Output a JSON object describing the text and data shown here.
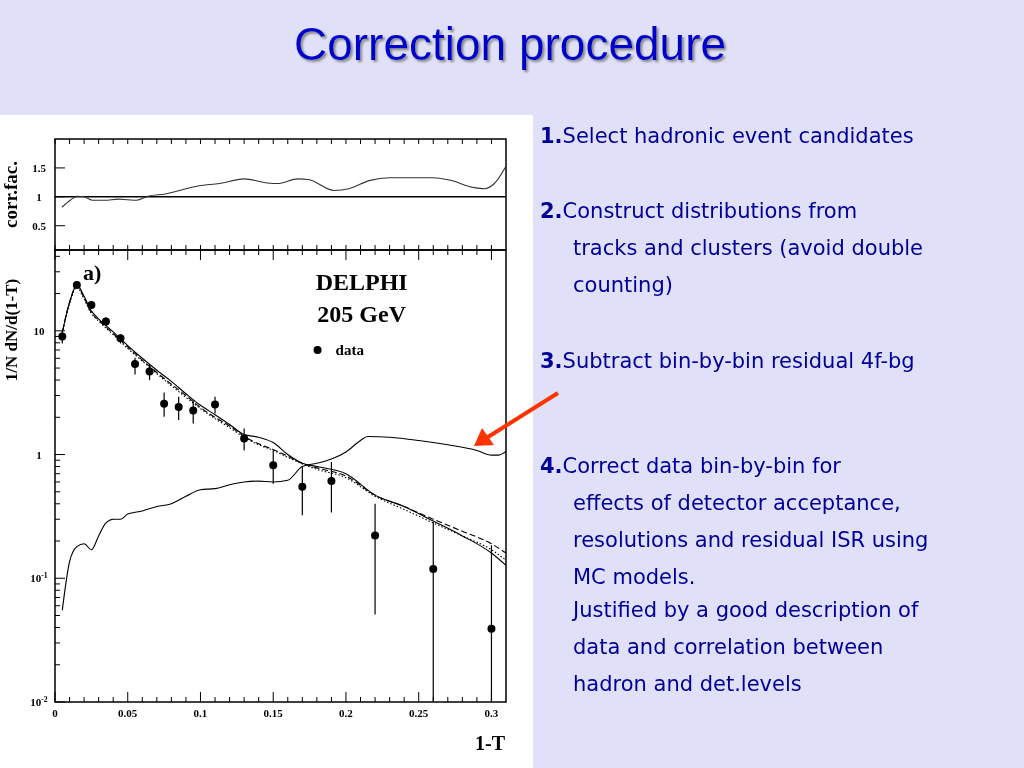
{
  "chart_data": [
    {
      "type": "line",
      "title": "Correction procedure",
      "ylabel": "corr.fac.",
      "xlim": [
        0,
        0.31
      ],
      "ylim": [
        0.08,
        2.0
      ],
      "xticks": [
        {
          "value": 0,
          "label": null
        },
        {
          "value": 0.01,
          "label": null
        },
        {
          "value": 0.02,
          "label": null
        },
        {
          "value": 0.03,
          "label": null
        },
        {
          "value": 0.04,
          "label": null
        },
        {
          "value": 0.05,
          "label": null
        },
        {
          "value": 0.06,
          "label": null
        },
        {
          "value": 0.07,
          "label": null
        },
        {
          "value": 0.08,
          "label": null
        },
        {
          "value": 0.09,
          "label": null
        },
        {
          "value": 0.1,
          "label": null
        },
        {
          "value": 0.11,
          "label": null
        },
        {
          "value": 0.12,
          "label": null
        },
        {
          "value": 0.13,
          "label": null
        },
        {
          "value": 0.14,
          "label": null
        },
        {
          "value": 0.15,
          "label": null
        },
        {
          "value": 0.16,
          "label": null
        },
        {
          "value": 0.17,
          "label": null
        },
        {
          "value": 0.18,
          "label": null
        },
        {
          "value": 0.19,
          "label": null
        },
        {
          "value": 0.2,
          "label": null
        },
        {
          "value": 0.21,
          "label": null
        },
        {
          "value": 0.22,
          "label": null
        },
        {
          "value": 0.23,
          "label": null
        },
        {
          "value": 0.24,
          "label": null
        },
        {
          "value": 0.25,
          "label": null
        },
        {
          "value": 0.26,
          "label": null
        },
        {
          "value": 0.27,
          "label": null
        },
        {
          "value": 0.28,
          "label": null
        },
        {
          "value": 0.29,
          "label": null
        },
        {
          "value": 0.3,
          "label": null
        }
      ],
      "yticks": [
        0.5,
        1,
        1.5
      ],
      "tick_labels": "y",
      "ref_lines": [
        {
          "axis": "y",
          "value": 1,
          "color": "#000000",
          "line_style": "solid"
        }
      ],
      "annotations": [
        "1.Select hadronic event candidates",
        "2.Construct distributions from tracks and clusters (avoid double counting)",
        "3.Subtract bin-by-bin residual 4f-bg",
        "4.Correct data bin-by-bin for effects of detector acceptance, resolutions and residual ISR using MC models.",
        "Justified by a good description of data and correlation between hadron and det.levels"
      ],
      "series": [
        {
          "color": "#333333",
          "line_style": "solid",
          "x": [
            0.0047,
            0.011,
            0.0156,
            0.02,
            0.026,
            0.034,
            0.0435,
            0.05,
            0.056,
            0.064,
            0.076,
            0.09,
            0.099,
            0.113,
            0.13,
            0.146,
            0.153,
            0.167,
            0.174,
            0.192,
            0.202,
            0.216,
            0.23,
            0.26,
            0.271,
            0.288,
            0.295,
            0.302,
            0.31
          ],
          "values": [
            0.82,
            0.95,
            1.01,
            1.0,
            0.94,
            0.94,
            0.96,
            0.95,
            0.94,
            1.01,
            1.05,
            1.14,
            1.19,
            1.23,
            1.31,
            1.24,
            1.23,
            1.31,
            1.3,
            1.11,
            1.14,
            1.28,
            1.33,
            1.33,
            1.29,
            1.16,
            1.14,
            1.23,
            1.53
          ]
        }
      ]
    },
    {
      "type": "line",
      "xlabel": "1-T",
      "ylabel": "1/N dN/d(1-T)",
      "log": "y",
      "xlim": [
        0,
        0.31
      ],
      "ylim": [
        0.01,
        45
      ],
      "legend": "top right",
      "xticks": [
        0,
        {
          "value": 0.01,
          "label": null
        },
        {
          "value": 0.02,
          "label": null
        },
        {
          "value": 0.03,
          "label": null
        },
        {
          "value": 0.04,
          "label": null
        },
        0.05,
        {
          "value": 0.06,
          "label": null
        },
        {
          "value": 0.07,
          "label": null
        },
        {
          "value": 0.08,
          "label": null
        },
        {
          "value": 0.09,
          "label": null
        },
        0.1,
        {
          "value": 0.11,
          "label": null
        },
        {
          "value": 0.12,
          "label": null
        },
        {
          "value": 0.13,
          "label": null
        },
        {
          "value": 0.14,
          "label": null
        },
        0.15,
        {
          "value": 0.16,
          "label": null
        },
        {
          "value": 0.17,
          "label": null
        },
        {
          "value": 0.18,
          "label": null
        },
        {
          "value": 0.19,
          "label": null
        },
        0.2,
        {
          "value": 0.21,
          "label": null
        },
        {
          "value": 0.22,
          "label": null
        },
        {
          "value": 0.23,
          "label": null
        },
        {
          "value": 0.24,
          "label": null
        },
        0.25,
        {
          "value": 0.26,
          "label": null
        },
        {
          "value": 0.27,
          "label": null
        },
        {
          "value": 0.28,
          "label": null
        },
        {
          "value": 0.29,
          "label": null
        },
        0.3
      ],
      "yticks": [
        {
          "value": 0.01,
          "label": "10$^{-2}$"
        },
        {
          "value": 0.02,
          "label": null
        },
        {
          "value": 0.03,
          "label": null
        },
        {
          "value": 0.04,
          "label": null
        },
        {
          "value": 0.05,
          "label": null
        },
        {
          "value": 0.06,
          "label": null
        },
        {
          "value": 0.07,
          "label": null
        },
        {
          "value": 0.08,
          "label": null
        },
        {
          "value": 0.09,
          "label": null
        },
        {
          "value": 0.1,
          "label": "10$^{-1}$"
        },
        {
          "value": 0.2,
          "label": null
        },
        {
          "value": 0.3,
          "label": null
        },
        {
          "value": 0.4,
          "label": null
        },
        {
          "value": 0.5,
          "label": null
        },
        {
          "value": 0.6,
          "label": null
        },
        {
          "value": 0.7,
          "label": null
        },
        {
          "value": 0.8,
          "label": null
        },
        {
          "value": 0.9,
          "label": null
        },
        1,
        {
          "value": 2,
          "label": null
        },
        {
          "value": 3,
          "label": null
        },
        {
          "value": 4,
          "label": null
        },
        {
          "value": 5,
          "label": null
        },
        {
          "value": 6,
          "label": null
        },
        {
          "value": 7,
          "label": null
        },
        {
          "value": 8,
          "label": null
        },
        {
          "value": 9,
          "label": null
        },
        10,
        {
          "value": 20,
          "label": null
        },
        {
          "value": 30,
          "label": null
        },
        {
          "value": 40,
          "label": null
        }
      ],
      "annotations": [
        "a)",
        "DELPHI",
        "205  GeV"
      ],
      "series": [
        {
          "name": "data",
          "type": "scatter",
          "marker": "circle",
          "color": "#000000",
          "x": [
            0.005,
            0.015,
            0.025,
            0.035,
            0.045,
            0.055,
            0.065,
            0.075,
            0.085,
            0.095,
            0.11,
            0.13,
            0.15,
            0.17,
            0.19,
            0.22,
            0.26,
            0.3
          ],
          "values": [
            9.0,
            23.5,
            16.2,
            11.9,
            8.7,
            5.4,
            4.7,
            2.57,
            2.42,
            2.27,
            2.54,
            1.35,
            0.82,
            0.55,
            0.61,
            0.222,
            0.119,
            0.039
          ],
          "errors": [
            [
              7.9,
              10.1
            ],
            null,
            [
              15.2,
              17.2
            ],
            [
              11.0,
              12.9
            ],
            [
              7.9,
              9.4
            ],
            [
              4.44,
              6.07
            ],
            [
              3.99,
              5.38
            ],
            [
              2.02,
              3.18
            ],
            [
              1.9,
              2.93
            ],
            [
              1.78,
              2.75
            ],
            [
              2.15,
              2.93
            ],
            [
              1.08,
              1.62
            ],
            [
              0.58,
              1.08
            ],
            [
              0.323,
              0.795
            ],
            [
              0.34,
              0.87
            ],
            [
              0.051,
              0.4
            ],
            [
              0.01,
              0.285
            ],
            [
              0.01,
              0.185
            ]
          ]
        },
        {
          "line_style": "solid",
          "color": "#000000",
          "x": [
            0.004,
            0.01,
            0.015,
            0.02,
            0.025,
            0.03,
            0.04,
            0.05,
            0.06,
            0.07,
            0.08,
            0.09,
            0.1,
            0.11,
            0.12,
            0.13,
            0.14,
            0.15,
            0.16,
            0.17,
            0.18,
            0.2,
            0.22,
            0.24,
            0.26,
            0.28,
            0.3,
            0.31
          ],
          "values": [
            8.5,
            17,
            23.5,
            19,
            14.5,
            12.5,
            9.8,
            7.6,
            6.0,
            4.8,
            3.9,
            3.1,
            2.5,
            2.1,
            1.75,
            1.45,
            1.38,
            1.25,
            1.0,
            0.85,
            0.8,
            0.7,
            0.47,
            0.38,
            0.29,
            0.22,
            0.16,
            0.127
          ]
        },
        {
          "line_style": "dashed",
          "color": "#000000",
          "x": [
            0.004,
            0.01,
            0.015,
            0.02,
            0.025,
            0.03,
            0.04,
            0.05,
            0.06,
            0.07,
            0.08,
            0.09,
            0.1,
            0.11,
            0.12,
            0.13,
            0.14,
            0.15,
            0.16,
            0.17,
            0.18,
            0.2,
            0.22,
            0.24,
            0.26,
            0.28,
            0.3,
            0.31
          ],
          "values": [
            8.5,
            17,
            23,
            18.5,
            14,
            12.2,
            9.5,
            7.4,
            5.8,
            4.6,
            3.7,
            3.0,
            2.4,
            2.0,
            1.7,
            1.4,
            1.22,
            1.1,
            0.97,
            0.85,
            0.78,
            0.67,
            0.47,
            0.38,
            0.3,
            0.24,
            0.19,
            0.16
          ]
        },
        {
          "line_style": "dotted",
          "color": "#000000",
          "x": [
            0.004,
            0.01,
            0.015,
            0.02,
            0.025,
            0.03,
            0.04,
            0.05,
            0.06,
            0.07,
            0.08,
            0.09,
            0.1,
            0.11,
            0.12,
            0.13,
            0.14,
            0.15,
            0.16,
            0.17,
            0.18,
            0.2,
            0.22,
            0.24,
            0.26,
            0.28,
            0.3,
            0.31
          ],
          "values": [
            8.4,
            16.5,
            22.5,
            18,
            13.8,
            12,
            9.3,
            7.2,
            5.7,
            4.5,
            3.6,
            2.9,
            2.35,
            1.95,
            1.65,
            1.38,
            1.2,
            1.08,
            0.95,
            0.84,
            0.76,
            0.65,
            0.46,
            0.36,
            0.28,
            0.22,
            0.17,
            0.14
          ]
        },
        {
          "line_style": "solid",
          "color": "#000000",
          "x": [
            0.005,
            0.01,
            0.015,
            0.02,
            0.025,
            0.03,
            0.035,
            0.04,
            0.045,
            0.05,
            0.06,
            0.07,
            0.08,
            0.09,
            0.1,
            0.11,
            0.12,
            0.13,
            0.14,
            0.15,
            0.16,
            0.17,
            0.18,
            0.19,
            0.2,
            0.21,
            0.215,
            0.23,
            0.25,
            0.27,
            0.29,
            0.3,
            0.305,
            0.31
          ],
          "values": [
            0.055,
            0.136,
            0.18,
            0.19,
            0.17,
            0.22,
            0.28,
            0.3,
            0.3,
            0.33,
            0.35,
            0.38,
            0.4,
            0.46,
            0.52,
            0.53,
            0.57,
            0.6,
            0.61,
            0.6,
            0.62,
            0.8,
            0.85,
            0.92,
            1.05,
            1.3,
            1.4,
            1.38,
            1.3,
            1.2,
            1.08,
            0.99,
            0.99,
            1.06
          ]
        }
      ]
    }
  ]
}
